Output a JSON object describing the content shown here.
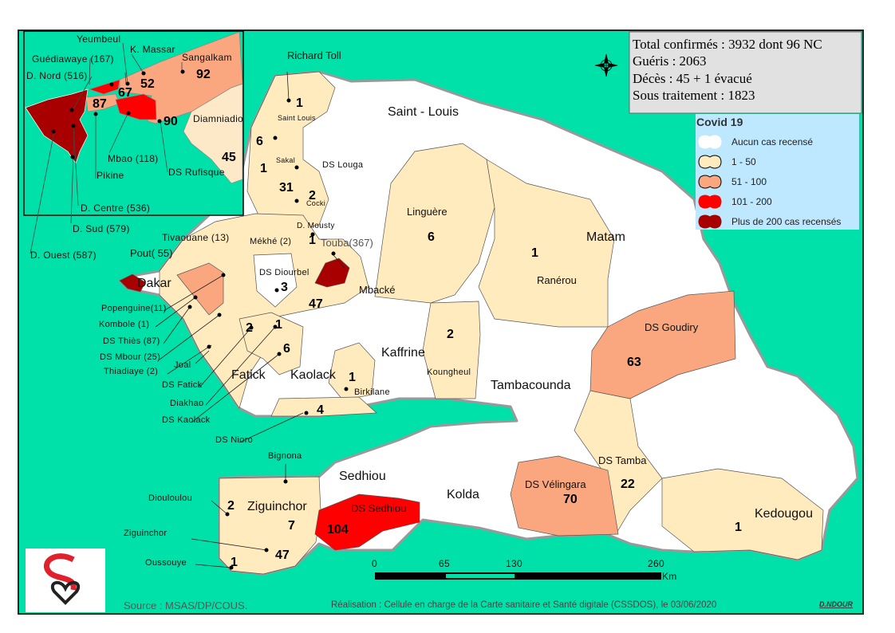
{
  "summary": {
    "total": "Total confirmés : 3932  dont 96  NC",
    "recovered": "Guéris : 2063",
    "deaths": "Décès : 45 + 1 évacué",
    "under_treatment": "Sous traitement : 1823"
  },
  "legend": {
    "title": "Covid 19",
    "items": [
      {
        "label": "Aucun cas recensé",
        "color": "#ffffff"
      },
      {
        "label": "1 - 50",
        "color": "#ffebbe"
      },
      {
        "label": "51 - 100",
        "color": "#faa77f"
      },
      {
        "label": "101 - 200",
        "color": "#ff0000"
      },
      {
        "label": "Plus de 200 cas recensés",
        "color": "#a80000"
      }
    ]
  },
  "colors": {
    "sea": "#00e1a9",
    "no_case": "#ffffff",
    "border": "#9a9a9a",
    "info_box": "#e1e1e1",
    "legend_bg": "#bee8ff"
  },
  "regions": {
    "saint_louis": "Saint - Louis",
    "matam": "Matam",
    "kaffrine": "Kaffrine",
    "tambacounda": "Tambacounda",
    "fatick": "Fatick",
    "kaolack": "Kaolack",
    "sedhiou": "Sedhiou",
    "kolda": "Kolda",
    "ziguinchor": "Ziguinchor",
    "kedougou": "Kedougou",
    "dakar": "Dakar"
  },
  "districts": {
    "richard_toll": "Richard Toll",
    "saint_louis": "Saint Louis",
    "sakal": "Sakal",
    "louga": "DS Louga",
    "cocki": "Cocki",
    "mousty": "D. Mousty",
    "touba": "Touba(367)",
    "mekhe": "Mékhé (2)",
    "tivaouane": "Tivaouane (13)",
    "pout": "Pout( 55)",
    "diourbel": "DS Diourbel",
    "mbacke": "Mbacké",
    "linguere": "Linguère",
    "ranerou": "Ranérou",
    "goudiry": "DS Goudiry",
    "koungheul": "Koungheul",
    "birkilane": "Birkilane",
    "tamba": "DS Tamba",
    "velingara": "DS Vélingara",
    "sedhiou": "DS Sedhiou",
    "bignona": "Bignona",
    "diouloulou": "Diouloulou",
    "ziguinchor": "Ziguinchor",
    "oussouye": "Oussouye",
    "popenguine": "Popenguine(11)",
    "kombole": "Kombole (1)",
    "thies": "DS Thiès (87)",
    "mbour": "DS Mbour (25)",
    "thiadiaye": "Thiadiaye (2)",
    "joal": "Joal",
    "fatick": "DS Fatick",
    "diakhao": "Diakhao",
    "kaolack": "DS Kaolack",
    "nioro": "DS Nioro"
  },
  "counts": {
    "richard_toll": "1",
    "saint_louis": "6",
    "sakal": "1",
    "louga": "31",
    "cocki": "2",
    "mousty": "1",
    "linguere": "6",
    "ranerou": "1",
    "diourbel": "3",
    "mbacke": "47",
    "koungheul": "2",
    "goudiry": "63",
    "fatick": "2",
    "diakhao": "1",
    "kaolack": "6",
    "birkilane": "1",
    "nioro": "4",
    "tamba": "22",
    "velingara": "70",
    "sedhiou": "104",
    "diouloulou": "2",
    "bignona": "7",
    "ziguinchor": "47",
    "oussouye": "1",
    "kedougou": "1"
  },
  "inset": {
    "labels": {
      "yeumbeul": "Yeumbeul",
      "keur_massar": "K. Massar",
      "sangalkam": "Sangalkam",
      "guediawaye": "Guédiawaye (167)",
      "nord": "D. Nord (516)",
      "diamniadio": "Diamniadio",
      "mbao": "Mbao (118)",
      "rufisque": "DS Rufisque",
      "pikine": "Pikine",
      "centre": "D. Centre (536)",
      "sud": "D. Sud (579)",
      "ouest": "D. Ouest (587)"
    },
    "counts": {
      "sangalkam": "92",
      "keur_massar": "52",
      "yeumbeul": "67",
      "pikine": "87",
      "rufisque": "90",
      "diamniadio": "45"
    }
  },
  "scale": {
    "ticks": [
      "0",
      "65",
      "130",
      "260"
    ],
    "unit": "Km"
  },
  "footer": {
    "source": "Source : MSAS/DP/COUS.",
    "credit": "Réalisation : Cellule en charge de la Carte sanitaire et Santé digitale (CSSDOS), le 03/06/2020",
    "author": "D.NDOUR"
  }
}
